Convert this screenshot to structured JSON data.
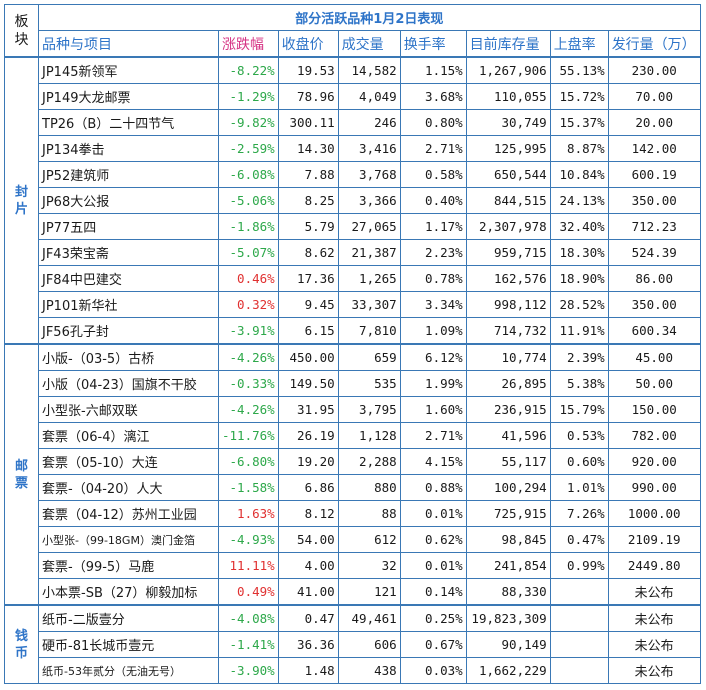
{
  "title": "部分活跃品种1月2日表现",
  "block_header": "板块",
  "headers": [
    "品种与项目",
    "涨跌幅",
    "收盘价",
    "成交量",
    "换手率",
    "目前库存量",
    "上盘率",
    "发行量（万）"
  ],
  "sections": [
    {
      "label": "封片",
      "rows": [
        {
          "name": "JP145新领军",
          "change": "-8.22%",
          "dir": "neg",
          "close": "19.53",
          "volume": "14,582",
          "turnover": "1.15%",
          "stock": "1,267,906",
          "listing": "55.13%",
          "issue": "230.00"
        },
        {
          "name": "JP149大龙邮票",
          "change": "-1.29%",
          "dir": "neg",
          "close": "78.96",
          "volume": "4,049",
          "turnover": "3.68%",
          "stock": "110,055",
          "listing": "15.72%",
          "issue": "70.00"
        },
        {
          "name": "TP26（B）二十四节气",
          "change": "-9.82%",
          "dir": "neg",
          "close": "300.11",
          "volume": "246",
          "turnover": "0.80%",
          "stock": "30,749",
          "listing": "15.37%",
          "issue": "20.00"
        },
        {
          "name": "JP134拳击",
          "change": "-2.59%",
          "dir": "neg",
          "close": "14.30",
          "volume": "3,416",
          "turnover": "2.71%",
          "stock": "125,995",
          "listing": "8.87%",
          "issue": "142.00"
        },
        {
          "name": "JP52建筑师",
          "change": "-6.08%",
          "dir": "neg",
          "close": "7.88",
          "volume": "3,768",
          "turnover": "0.58%",
          "stock": "650,544",
          "listing": "10.84%",
          "issue": "600.19"
        },
        {
          "name": "JP68大公报",
          "change": "-5.06%",
          "dir": "neg",
          "close": "8.25",
          "volume": "3,366",
          "turnover": "0.40%",
          "stock": "844,515",
          "listing": "24.13%",
          "issue": "350.00"
        },
        {
          "name": "JP77五四",
          "change": "-1.86%",
          "dir": "neg",
          "close": "5.79",
          "volume": "27,065",
          "turnover": "1.17%",
          "stock": "2,307,978",
          "listing": "32.40%",
          "issue": "712.23"
        },
        {
          "name": "JF43荣宝斋",
          "change": "-5.07%",
          "dir": "neg",
          "close": "8.62",
          "volume": "21,387",
          "turnover": "2.23%",
          "stock": "959,715",
          "listing": "18.30%",
          "issue": "524.39"
        },
        {
          "name": "JF84中巴建交",
          "change": "0.46%",
          "dir": "pos",
          "close": "17.36",
          "volume": "1,265",
          "turnover": "0.78%",
          "stock": "162,576",
          "listing": "18.90%",
          "issue": "86.00"
        },
        {
          "name": "JP101新华社",
          "change": "0.32%",
          "dir": "pos",
          "close": "9.45",
          "volume": "33,307",
          "turnover": "3.34%",
          "stock": "998,112",
          "listing": "28.52%",
          "issue": "350.00"
        },
        {
          "name": "JF56孔子封",
          "change": "-3.91%",
          "dir": "neg",
          "close": "6.15",
          "volume": "7,810",
          "turnover": "1.09%",
          "stock": "714,732",
          "listing": "11.91%",
          "issue": "600.34"
        }
      ]
    },
    {
      "label": "邮票",
      "rows": [
        {
          "name": "小版-（03-5）古桥",
          "change": "-4.26%",
          "dir": "neg",
          "close": "450.00",
          "volume": "659",
          "turnover": "6.12%",
          "stock": "10,774",
          "listing": "2.39%",
          "issue": "45.00"
        },
        {
          "name": "小版（04-23）国旗不干胶",
          "change": "-0.33%",
          "dir": "neg",
          "close": "149.50",
          "volume": "535",
          "turnover": "1.99%",
          "stock": "26,895",
          "listing": "5.38%",
          "issue": "50.00"
        },
        {
          "name": "小型张-六邮双联",
          "change": "-4.26%",
          "dir": "neg",
          "close": "31.95",
          "volume": "3,795",
          "turnover": "1.60%",
          "stock": "236,915",
          "listing": "15.79%",
          "issue": "150.00"
        },
        {
          "name": "套票（06-4）漓江",
          "change": "-11.76%",
          "dir": "neg",
          "close": "26.19",
          "volume": "1,128",
          "turnover": "2.71%",
          "stock": "41,596",
          "listing": "0.53%",
          "issue": "782.00"
        },
        {
          "name": "套票（05-10）大连",
          "change": "-6.80%",
          "dir": "neg",
          "close": "19.20",
          "volume": "2,288",
          "turnover": "4.15%",
          "stock": "55,117",
          "listing": "0.60%",
          "issue": "920.00"
        },
        {
          "name": "套票-（04-20）人大",
          "change": "-1.58%",
          "dir": "neg",
          "close": "6.86",
          "volume": "880",
          "turnover": "0.88%",
          "stock": "100,294",
          "listing": "1.01%",
          "issue": "990.00"
        },
        {
          "name": "套票（04-12）苏州工业园",
          "change": "1.63%",
          "dir": "pos",
          "close": "8.12",
          "volume": "88",
          "turnover": "0.01%",
          "stock": "725,915",
          "listing": "7.26%",
          "issue": "1000.00"
        },
        {
          "name": "小型张-（99-18GM）澳门金箔",
          "change": "-4.93%",
          "dir": "neg",
          "close": "54.00",
          "volume": "612",
          "turnover": "0.62%",
          "stock": "98,845",
          "listing": "0.47%",
          "issue": "2109.19",
          "small": true
        },
        {
          "name": "套票-（99-5）马鹿",
          "change": "11.11%",
          "dir": "pos",
          "close": "4.00",
          "volume": "32",
          "turnover": "0.01%",
          "stock": "241,854",
          "listing": "0.99%",
          "issue": "2449.80"
        },
        {
          "name": "小本票-SB（27）柳毅加标",
          "change": "0.49%",
          "dir": "pos",
          "close": "41.00",
          "volume": "121",
          "turnover": "0.14%",
          "stock": "88,330",
          "listing": "",
          "issue": "未公布"
        }
      ]
    },
    {
      "label": "钱币",
      "rows": [
        {
          "name": "纸币-二版壹分",
          "change": "-4.08%",
          "dir": "neg",
          "close": "0.47",
          "volume": "49,461",
          "turnover": "0.25%",
          "stock": "19,823,309",
          "listing": "",
          "issue": "未公布"
        },
        {
          "name": "硬币-81长城币壹元",
          "change": "-1.41%",
          "dir": "neg",
          "close": "36.36",
          "volume": "606",
          "turnover": "0.67%",
          "stock": "90,149",
          "listing": "",
          "issue": "未公布"
        },
        {
          "name": "纸币-53年贰分（无油无号）",
          "change": "-3.90%",
          "dir": "neg",
          "close": "1.48",
          "volume": "438",
          "turnover": "0.03%",
          "stock": "1,662,229",
          "listing": "",
          "issue": "未公布",
          "small": true
        }
      ]
    }
  ]
}
